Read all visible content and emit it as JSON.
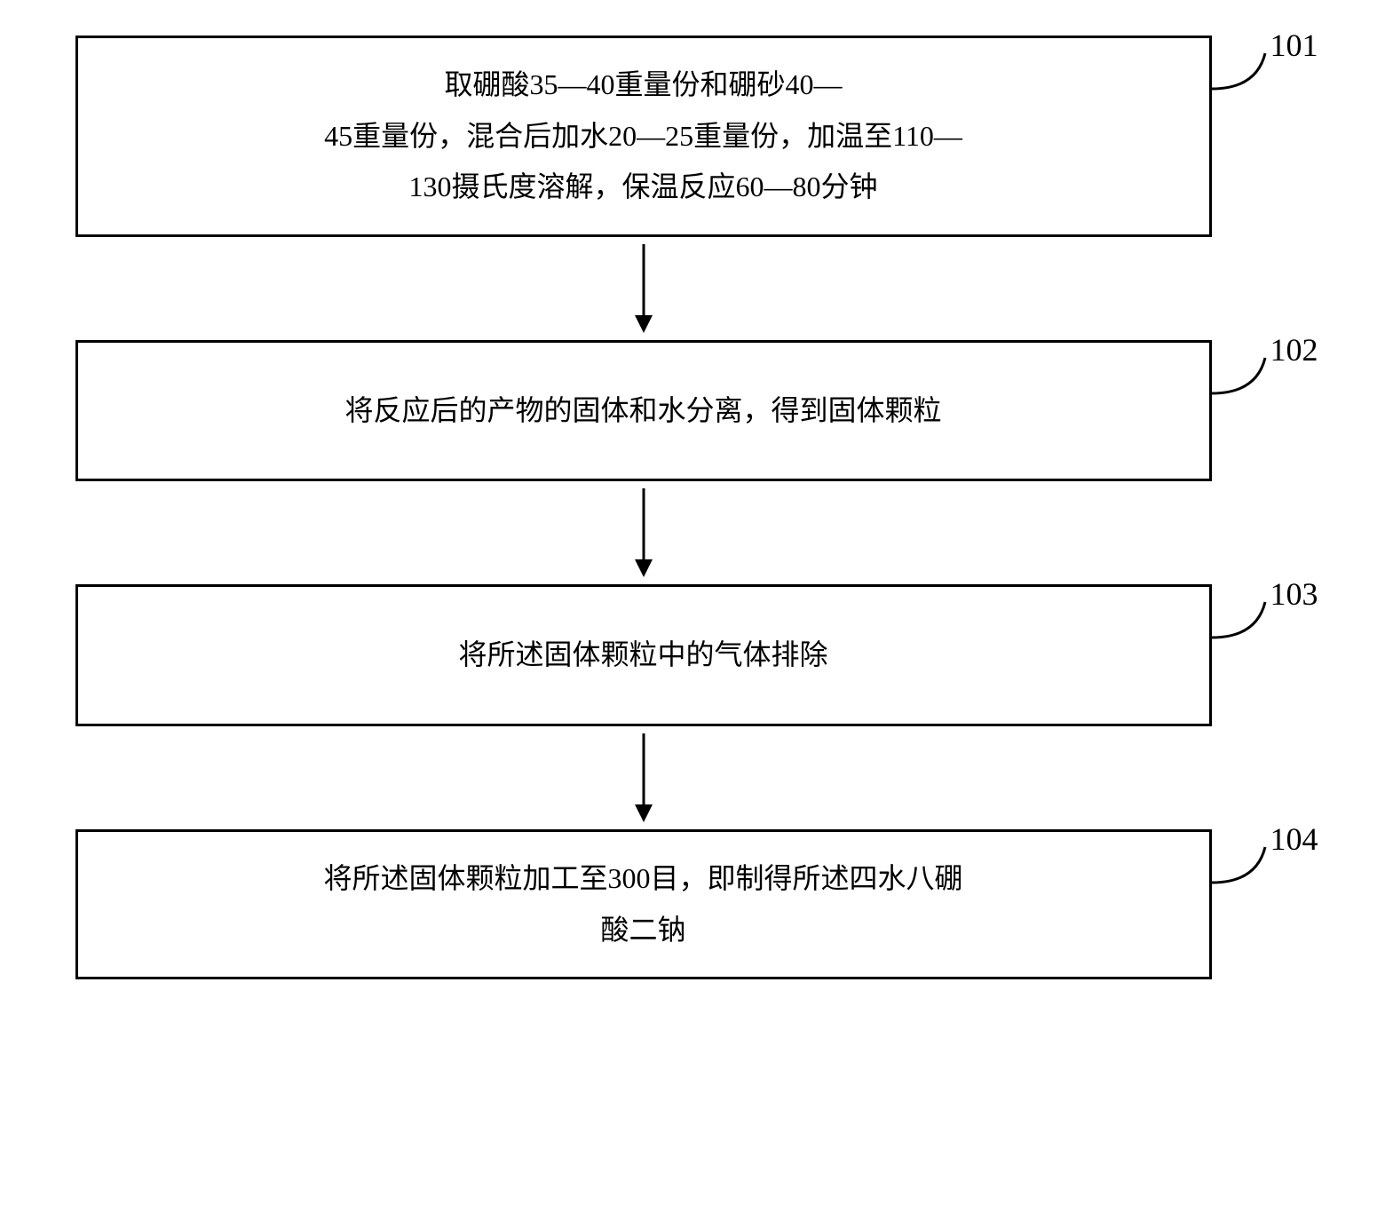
{
  "flow": {
    "steps": [
      {
        "label": "101",
        "text": "取硼酸35—40重量份和硼砂40—\n45重量份，混合后加水20—25重量份，加温至110—\n130摄氏度溶解，保温反应60—80分钟"
      },
      {
        "label": "102",
        "text": "将反应后的产物的固体和水分离，得到固体颗粒"
      },
      {
        "label": "103",
        "text": "将所述固体颗粒中的气体排除"
      },
      {
        "label": "104",
        "text": "将所述固体颗粒加工至300目，即制得所述四水八硼\n酸二钠"
      }
    ],
    "style": {
      "box_border_color": "#000000",
      "box_border_width": 3,
      "background_color": "#ffffff",
      "text_color": "#000000",
      "font_size_box": 32,
      "font_size_label": 36,
      "arrow_length": 90,
      "arrow_stroke_width": 3,
      "arrow_head_size": 14
    }
  }
}
